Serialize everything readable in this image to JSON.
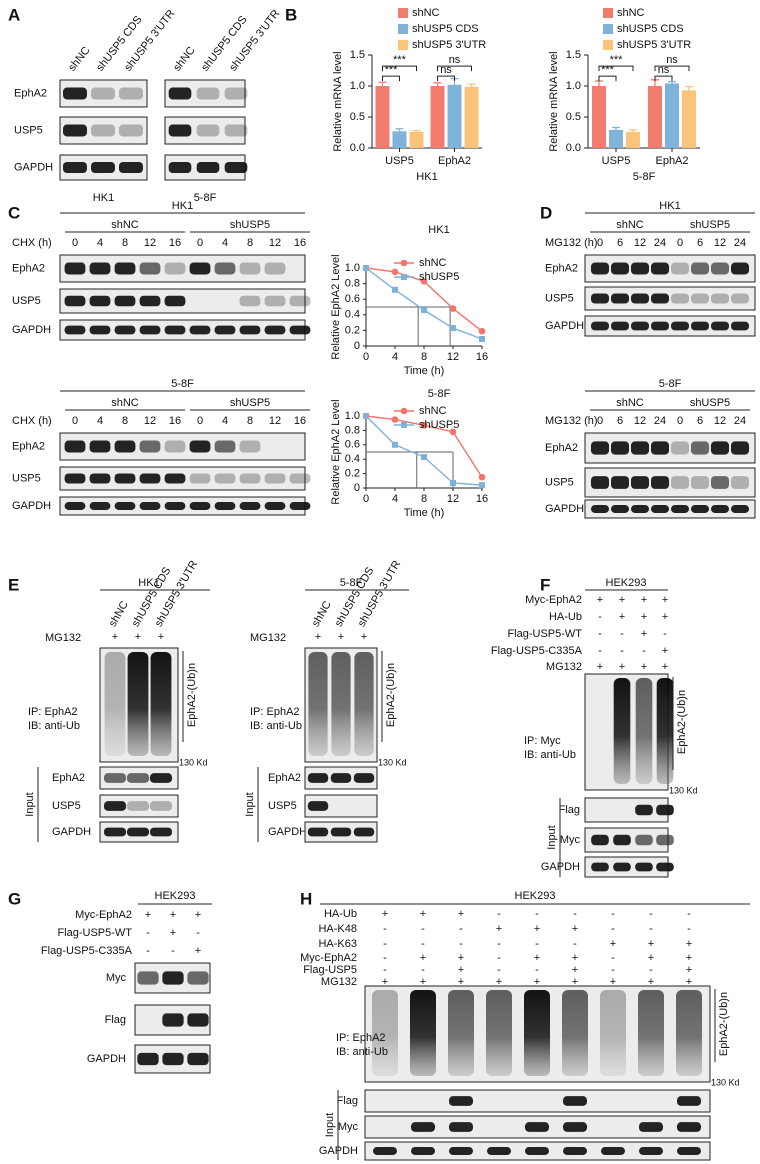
{
  "panel_labels": [
    "A",
    "B",
    "C",
    "D",
    "E",
    "F",
    "G",
    "H"
  ],
  "A": {
    "rows": [
      "EphA2",
      "USP5",
      "GAPDH"
    ],
    "blots": [
      {
        "cell": "HK1",
        "lanes": [
          "shNC",
          "shUSP5 CDS",
          "shUSP5 3'UTR"
        ]
      },
      {
        "cell": "5-8F",
        "lanes": [
          "shNC",
          "shUSP5 CDS",
          "shUSP5 3'UTR"
        ]
      }
    ]
  },
  "chart_data": [
    {
      "type": "bar",
      "xlabel": "HK1",
      "ylabel": "Relative mRNA level",
      "categories": [
        "USP5",
        "EphA2"
      ],
      "series": [
        {
          "name": "shNC",
          "color": "#f47c6f",
          "values": [
            1.0,
            1.0
          ],
          "errors": [
            0.06,
            0.05
          ]
        },
        {
          "name": "shUSP5 CDS",
          "color": "#7fb3d9",
          "values": [
            0.27,
            1.02
          ],
          "errors": [
            0.04,
            0.1
          ]
        },
        {
          "name": "shUSP5 3'UTR",
          "color": "#fcc47a",
          "values": [
            0.26,
            0.99
          ],
          "errors": [
            0.02,
            0.04
          ]
        }
      ],
      "ylim": [
        0,
        1.5
      ],
      "yticks": [
        {
          "value": 0,
          "label": "0.0"
        },
        0.5,
        {
          "value": 1,
          "label": "1.0"
        },
        1.5
      ],
      "annotations": [
        "***",
        "***",
        "ns",
        "ns"
      ]
    },
    {
      "type": "bar",
      "xlabel": "5-8F",
      "ylabel": "Relative mRNA level",
      "categories": [
        "USP5",
        "EphA2"
      ],
      "series": [
        {
          "name": "shNC",
          "color": "#f47c6f",
          "values": [
            1.0,
            1.0
          ],
          "errors": [
            0.08,
            0.1
          ]
        },
        {
          "name": "shUSP5 CDS",
          "color": "#7fb3d9",
          "values": [
            0.29,
            1.04
          ],
          "errors": [
            0.04,
            0.03
          ]
        },
        {
          "name": "shUSP5 3'UTR",
          "color": "#fcc47a",
          "values": [
            0.26,
            0.93
          ],
          "errors": [
            0.03,
            0.06
          ]
        }
      ],
      "ylim": [
        0,
        1.5
      ],
      "yticks": [
        {
          "value": 0,
          "label": "0.0"
        },
        0.5,
        {
          "value": 1,
          "label": "1.0"
        },
        1.5
      ],
      "annotations": [
        "***",
        "***",
        "ns",
        "ns"
      ]
    },
    {
      "type": "line",
      "title": "HK1",
      "xlabel": "Time (h)",
      "ylabel": "Relative EphA2 Level",
      "x": [
        0,
        4,
        8,
        12,
        16
      ],
      "series": [
        {
          "name": "shNC",
          "color": "#f4736a",
          "values": [
            1.0,
            0.95,
            0.83,
            0.48,
            0.19
          ]
        },
        {
          "name": "shUSP5",
          "color": "#7fb2d9",
          "values": [
            1.0,
            0.72,
            0.46,
            0.23,
            0.09
          ]
        }
      ],
      "xlim": [
        0,
        16
      ],
      "xticks": [
        0,
        4,
        8,
        12,
        16
      ],
      "ylim": [
        0,
        1
      ],
      "yticks": [
        0,
        0.2,
        0.4,
        0.6,
        0.8,
        {
          "value": 1,
          "label": "1.0"
        }
      ],
      "guides": {
        "y": 0.5,
        "x": [
          7.2,
          11.6
        ]
      }
    },
    {
      "type": "line",
      "title": "5-8F",
      "xlabel": "Time (h)",
      "ylabel": "Relative EphA2 Level",
      "x": [
        0,
        4,
        8,
        12,
        16
      ],
      "series": [
        {
          "name": "shNC",
          "color": "#f4736a",
          "values": [
            1.0,
            0.95,
            0.87,
            0.78,
            0.15
          ]
        },
        {
          "name": "shUSP5",
          "color": "#7fb2d9",
          "values": [
            1.0,
            0.6,
            0.43,
            0.07,
            0.04
          ]
        }
      ],
      "xlim": [
        0,
        16
      ],
      "xticks": [
        0,
        4,
        8,
        12,
        16
      ],
      "ylim": [
        0,
        1
      ],
      "yticks": [
        0,
        0.2,
        0.4,
        0.6,
        0.8,
        {
          "value": 1,
          "label": "1.0"
        }
      ],
      "guides": {
        "y": 0.5,
        "x": [
          7.0,
          12.0
        ]
      }
    }
  ],
  "C": {
    "blocks": [
      {
        "cell": "HK1",
        "treatment": "CHX (h)",
        "groups": [
          {
            "name": "shNC",
            "times": [
              0,
              4,
              8,
              12,
              16
            ]
          },
          {
            "name": "shUSP5",
            "times": [
              0,
              4,
              8,
              12,
              16
            ]
          }
        ],
        "rows": [
          "EphA2",
          "USP5",
          "GAPDH"
        ]
      },
      {
        "cell": "5-8F",
        "treatment": "CHX (h)",
        "groups": [
          {
            "name": "shNC",
            "times": [
              0,
              4,
              8,
              12,
              16
            ]
          },
          {
            "name": "shUSP5",
            "times": [
              0,
              4,
              8,
              12,
              16
            ]
          }
        ],
        "rows": [
          "EphA2",
          "USP5",
          "GAPDH"
        ]
      }
    ]
  },
  "D": {
    "blocks": [
      {
        "cell": "HK1",
        "treatment": "MG132 (h)",
        "groups": [
          {
            "name": "shNC",
            "times": [
              0,
              6,
              12,
              24
            ]
          },
          {
            "name": "shUSP5",
            "times": [
              0,
              6,
              12,
              24
            ]
          }
        ],
        "rows": [
          "EphA2",
          "USP5",
          "GAPDH"
        ]
      },
      {
        "cell": "5-8F",
        "treatment": "MG132 (h)",
        "groups": [
          {
            "name": "shNC",
            "times": [
              0,
              6,
              12,
              24
            ]
          },
          {
            "name": "shUSP5",
            "times": [
              0,
              6,
              12,
              24
            ]
          }
        ],
        "rows": [
          "EphA2",
          "USP5",
          "GAPDH"
        ]
      }
    ]
  },
  "E": {
    "blocks": [
      {
        "cell": "HK1",
        "lanes": [
          "shNC",
          "shUSP5 CDS",
          "shUSP5 3'UTR"
        ],
        "treatment": "MG132",
        "signs": [
          "+",
          "+",
          "+"
        ],
        "ip": [
          "IP: EphA2",
          "IB: anti-Ub"
        ],
        "ub": "EphA2-(Ub)n",
        "marker": "130 Kd",
        "input": "Input",
        "rows": [
          "EphA2",
          "USP5",
          "GAPDH"
        ]
      },
      {
        "cell": "5-8F",
        "lanes": [
          "shNC",
          "shUSP5 CDS",
          "shUSP5 3'UTR"
        ],
        "treatment": "MG132",
        "signs": [
          "+",
          "+",
          "+"
        ],
        "ip": [
          "IP: EphA2",
          "IB: anti-Ub"
        ],
        "ub": "EphA2-(Ub)n",
        "marker": "130 Kd",
        "input": "Input",
        "rows": [
          "EphA2",
          "USP5",
          "GAPDH"
        ]
      }
    ]
  },
  "F": {
    "cell": "HEK293",
    "conditions": [
      {
        "label": "Myc-EphA2",
        "signs": [
          "+",
          "+",
          "+",
          "+"
        ]
      },
      {
        "label": "HA-Ub",
        "signs": [
          "-",
          "+",
          "+",
          "+"
        ]
      },
      {
        "label": "Flag-USP5-WT",
        "signs": [
          "-",
          "-",
          "+",
          "-"
        ]
      },
      {
        "label": "Flag-USP5-C335A",
        "signs": [
          "-",
          "-",
          "-",
          "+"
        ]
      },
      {
        "label": "MG132",
        "signs": [
          "+",
          "+",
          "+",
          "+"
        ]
      }
    ],
    "ip": [
      "IP: Myc",
      "IB: anti-Ub"
    ],
    "ub": "EphA2-(Ub)n",
    "marker": "130 Kd",
    "input": "Input",
    "rows": [
      "Flag",
      "Myc",
      "GAPDH"
    ]
  },
  "G": {
    "cell": "HEK293",
    "conditions": [
      {
        "label": "Myc-EphA2",
        "signs": [
          "+",
          "+",
          "+"
        ]
      },
      {
        "label": "Flag-USP5-WT",
        "signs": [
          "-",
          "+",
          "-"
        ]
      },
      {
        "label": "Flag-USP5-C335A",
        "signs": [
          "-",
          "-",
          "+"
        ]
      }
    ],
    "rows": [
      "Myc",
      "Flag",
      "GAPDH"
    ]
  },
  "H": {
    "cell": "HEK293",
    "conditions": [
      {
        "label": "HA-Ub",
        "signs": [
          "+",
          "+",
          "+",
          "-",
          "-",
          "-",
          "-",
          "-",
          "-"
        ]
      },
      {
        "label": "HA-K48",
        "signs": [
          "-",
          "-",
          "-",
          "+",
          "+",
          "+",
          "-",
          "-",
          "-"
        ]
      },
      {
        "label": "HA-K63",
        "signs": [
          "-",
          "-",
          "-",
          "-",
          "-",
          "-",
          "+",
          "+",
          "+"
        ]
      },
      {
        "label": "Myc-EphA2",
        "signs": [
          "-",
          "+",
          "+",
          "-",
          "+",
          "+",
          "-",
          "+",
          "+"
        ]
      },
      {
        "label": "Flag-USP5",
        "signs": [
          "-",
          "-",
          "+",
          "-",
          "-",
          "+",
          "-",
          "-",
          "+"
        ]
      },
      {
        "label": "MG132",
        "signs": [
          "+",
          "+",
          "+",
          "+",
          "+",
          "+",
          "+",
          "+",
          "+"
        ]
      }
    ],
    "ip": [
      "IP: EphA2",
      "IB: anti-Ub"
    ],
    "ub": "EphA2-(Ub)n",
    "marker": "130 Kd",
    "input": "Input",
    "rows": [
      "Flag",
      "Myc",
      "GAPDH"
    ]
  }
}
